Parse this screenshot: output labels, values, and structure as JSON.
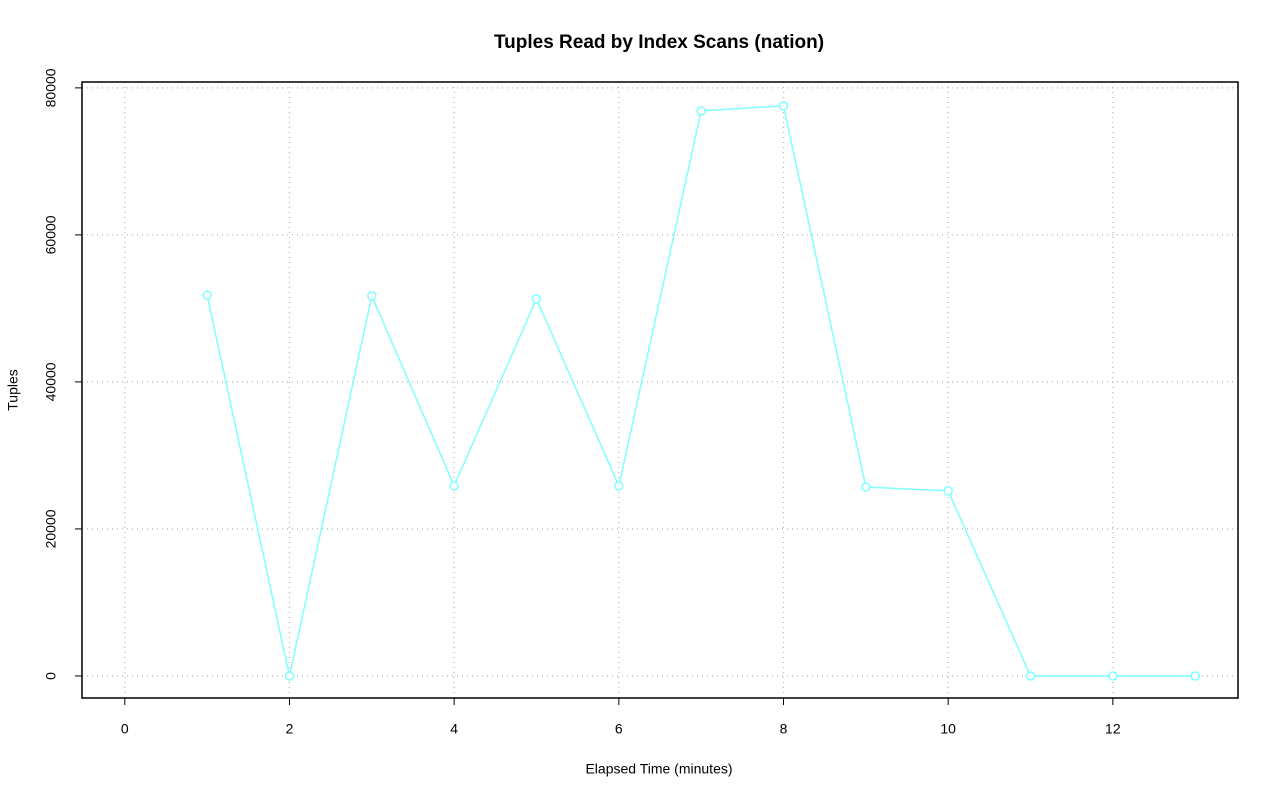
{
  "chart_data": {
    "type": "line",
    "title": "Tuples Read by Index Scans (nation)",
    "x_label": "Elapsed Time (minutes)",
    "y_label": "Tuples",
    "x": [
      1,
      2,
      3,
      4,
      5,
      6,
      7,
      8,
      9,
      10,
      11,
      12,
      13
    ],
    "series": [
      {
        "color": "#7fffff",
        "values": [
          51800,
          0,
          51700,
          25850,
          51300,
          25850,
          76870,
          77550,
          25700,
          25170,
          0,
          0,
          0
        ]
      }
    ],
    "xlim": [
      -0.52,
      13.52
    ],
    "xticks": [
      0,
      2,
      4,
      6,
      8,
      10,
      12
    ],
    "ylim": [
      -3000,
      80800
    ],
    "yticks": [
      0,
      20000,
      40000,
      60000,
      80000
    ],
    "grid": true
  }
}
